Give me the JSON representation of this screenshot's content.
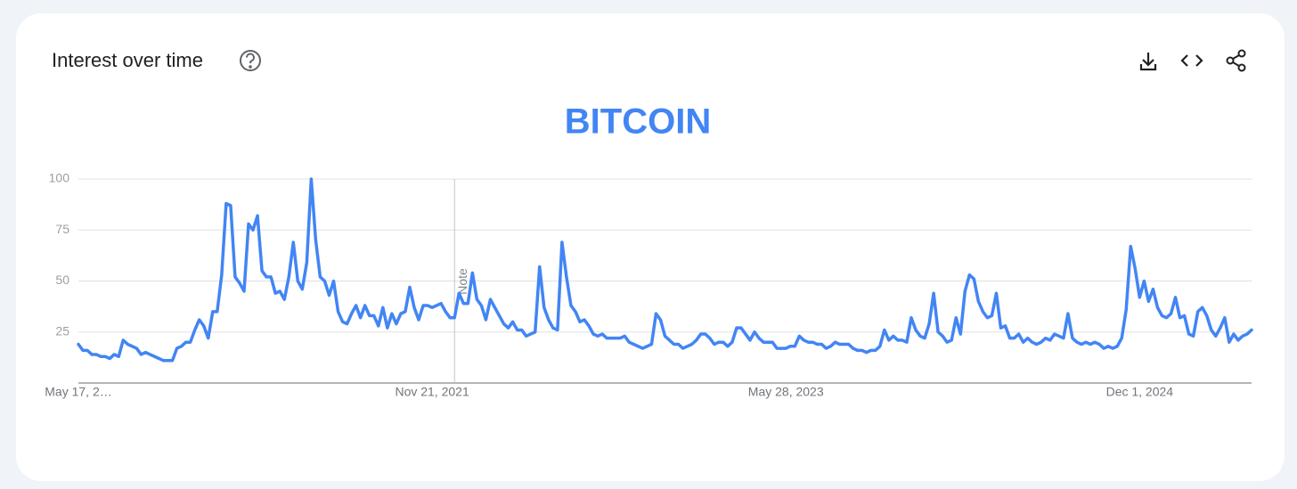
{
  "header": {
    "title": "Interest over time"
  },
  "chart_data": {
    "type": "line",
    "title": "BITCOIN",
    "color": "#4285f4",
    "annotation": "Note",
    "ylim": [
      0,
      100
    ],
    "yticks": [
      25,
      50,
      75,
      100
    ],
    "grid": true,
    "categories": [
      "May 17, 2…",
      null,
      null,
      null,
      null,
      null,
      null,
      null,
      null,
      null,
      null,
      null,
      null,
      null,
      null,
      null,
      null,
      null,
      null,
      null,
      null,
      null,
      null,
      null,
      null,
      null,
      null,
      null,
      null,
      null,
      null,
      null,
      null,
      null,
      null,
      null,
      null,
      null,
      null,
      null,
      null,
      null,
      null,
      null,
      null,
      null,
      null,
      null,
      null,
      null,
      null,
      null,
      null,
      null,
      null,
      null,
      null,
      null,
      null,
      null,
      null,
      null,
      null,
      null,
      null,
      null,
      null,
      null,
      null,
      null,
      null,
      null,
      null,
      null,
      null,
      null,
      null,
      null,
      null,
      "Nov 21, 2021",
      null,
      null,
      null,
      null,
      null,
      null,
      null,
      null,
      null,
      null,
      null,
      null,
      null,
      null,
      null,
      null,
      null,
      null,
      null,
      null,
      null,
      null,
      null,
      null,
      null,
      null,
      null,
      null,
      null,
      null,
      null,
      null,
      null,
      null,
      null,
      null,
      null,
      null,
      null,
      null,
      null,
      null,
      null,
      null,
      null,
      null,
      null,
      null,
      null,
      null,
      null,
      null,
      null,
      null,
      null,
      null,
      null,
      null,
      null,
      null,
      null,
      null,
      null,
      null,
      null,
      null,
      null,
      null,
      null,
      null,
      null,
      null,
      null,
      null,
      null,
      null,
      null,
      null,
      "May 28, 2023",
      null,
      null,
      null,
      null,
      null,
      null,
      null,
      null,
      null,
      null,
      null,
      null,
      null,
      null,
      null,
      null,
      null,
      null,
      null,
      null,
      null,
      null,
      null,
      null,
      null,
      null,
      null,
      null,
      null,
      null,
      null,
      null,
      null,
      null,
      null,
      null,
      null,
      null,
      null,
      null,
      null,
      null,
      null,
      null,
      null,
      null,
      null,
      null,
      null,
      null,
      null,
      null,
      null,
      null,
      null,
      null,
      null,
      null,
      null,
      null,
      null,
      null,
      null,
      null,
      null,
      null,
      null,
      null,
      null,
      null,
      null,
      null,
      null,
      null,
      null,
      null,
      null,
      null,
      "Dec 1, 2024",
      null,
      null,
      null,
      null,
      null,
      null,
      null,
      null,
      null,
      null,
      null,
      null,
      null,
      null,
      null,
      null,
      null,
      null,
      null,
      null,
      null,
      null,
      null,
      null,
      null
    ],
    "values": [
      19,
      16,
      16,
      14,
      14,
      13,
      13,
      12,
      14,
      13,
      21,
      19,
      18,
      17,
      14,
      15,
      14,
      13,
      12,
      11,
      11,
      11,
      17,
      18,
      20,
      20,
      26,
      31,
      28,
      22,
      35,
      35,
      53,
      88,
      87,
      52,
      49,
      45,
      78,
      75,
      82,
      55,
      52,
      52,
      44,
      45,
      41,
      52,
      69,
      50,
      46,
      59,
      100,
      70,
      52,
      50,
      43,
      50,
      35,
      30,
      29,
      34,
      38,
      32,
      38,
      33,
      33,
      28,
      37,
      27,
      34,
      29,
      34,
      35,
      47,
      37,
      31,
      38,
      38,
      37,
      38,
      39,
      35,
      32,
      32,
      44,
      39,
      39,
      54,
      41,
      38,
      31,
      41,
      37,
      33,
      29,
      27,
      30,
      26,
      26,
      23,
      24,
      25,
      57,
      37,
      31,
      27,
      26,
      69,
      52,
      38,
      35,
      30,
      31,
      28,
      24,
      23,
      24,
      22,
      22,
      22,
      22,
      23,
      20,
      19,
      18,
      17,
      18,
      19,
      34,
      31,
      23,
      21,
      19,
      19,
      17,
      18,
      19,
      21,
      24,
      24,
      22,
      19,
      20,
      20,
      18,
      20,
      27,
      27,
      24,
      21,
      25,
      22,
      20,
      20,
      20,
      17,
      17,
      17,
      18,
      18,
      23,
      21,
      20,
      20,
      19,
      19,
      17,
      18,
      20,
      19,
      19,
      19,
      17,
      16,
      16,
      15,
      16,
      16,
      18,
      26,
      21,
      23,
      21,
      21,
      20,
      32,
      26,
      23,
      22,
      29,
      44,
      25,
      23,
      20,
      21,
      32,
      24,
      45,
      53,
      51,
      40,
      35,
      32,
      33,
      44,
      27,
      28,
      22,
      22,
      24,
      20,
      22,
      20,
      19,
      20,
      22,
      21,
      24,
      23,
      22,
      34,
      22,
      20,
      19,
      20,
      19,
      20,
      19,
      17,
      18,
      17,
      18,
      22,
      36,
      67,
      56,
      42,
      50,
      40,
      46,
      37,
      33,
      32,
      34,
      42,
      32,
      33,
      24,
      23,
      35,
      37,
      33,
      26,
      23,
      27,
      32,
      20,
      24,
      21,
      23,
      24,
      26
    ]
  }
}
